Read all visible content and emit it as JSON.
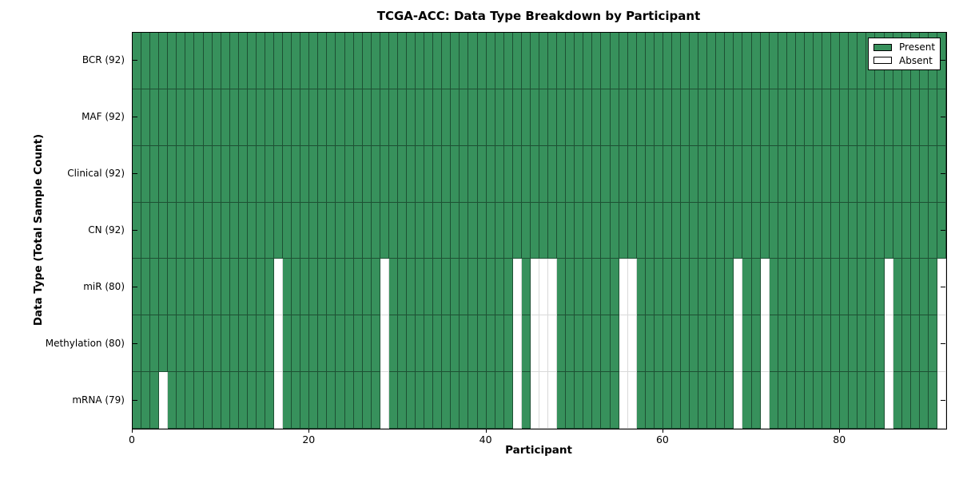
{
  "chart_data": {
    "type": "heatmap",
    "title": "TCGA-ACC: Data Type Breakdown by Participant",
    "xlabel": "Participant",
    "ylabel": "Data Type (Total Sample Count)",
    "n_participants": 92,
    "x_range": [
      0,
      92
    ],
    "x_ticks": [
      0,
      20,
      40,
      60,
      80
    ],
    "grid": true,
    "legend": {
      "position": "upper right",
      "entries": [
        {
          "label": "Present",
          "state": "present"
        },
        {
          "label": "Absent",
          "state": "absent"
        }
      ]
    },
    "rows": [
      {
        "key": "bcr",
        "label": "BCR (92)",
        "present_count": 92,
        "absent": []
      },
      {
        "key": "maf",
        "label": "MAF (92)",
        "present_count": 92,
        "absent": []
      },
      {
        "key": "clinical",
        "label": "Clinical (92)",
        "present_count": 92,
        "absent": []
      },
      {
        "key": "cn",
        "label": "CN (92)",
        "present_count": 92,
        "absent": []
      },
      {
        "key": "mir",
        "label": "miR (80)",
        "present_count": 80,
        "absent": [
          16,
          28,
          43,
          45,
          46,
          47,
          55,
          56,
          68,
          71,
          85,
          91
        ]
      },
      {
        "key": "methylation",
        "label": "Methylation (80)",
        "present_count": 80,
        "absent": [
          16,
          28,
          43,
          45,
          46,
          47,
          55,
          56,
          68,
          71,
          85,
          91
        ]
      },
      {
        "key": "mrna",
        "label": "mRNA (79)",
        "present_count": 79,
        "absent": [
          3,
          16,
          28,
          43,
          45,
          46,
          47,
          55,
          56,
          68,
          71,
          85,
          91
        ]
      }
    ],
    "colors": {
      "present": "#37915c",
      "absent": "#ffffff",
      "grid_on_present": "#1d5033",
      "grid_on_absent": "#d9d9d9",
      "frame": "#000000"
    }
  }
}
